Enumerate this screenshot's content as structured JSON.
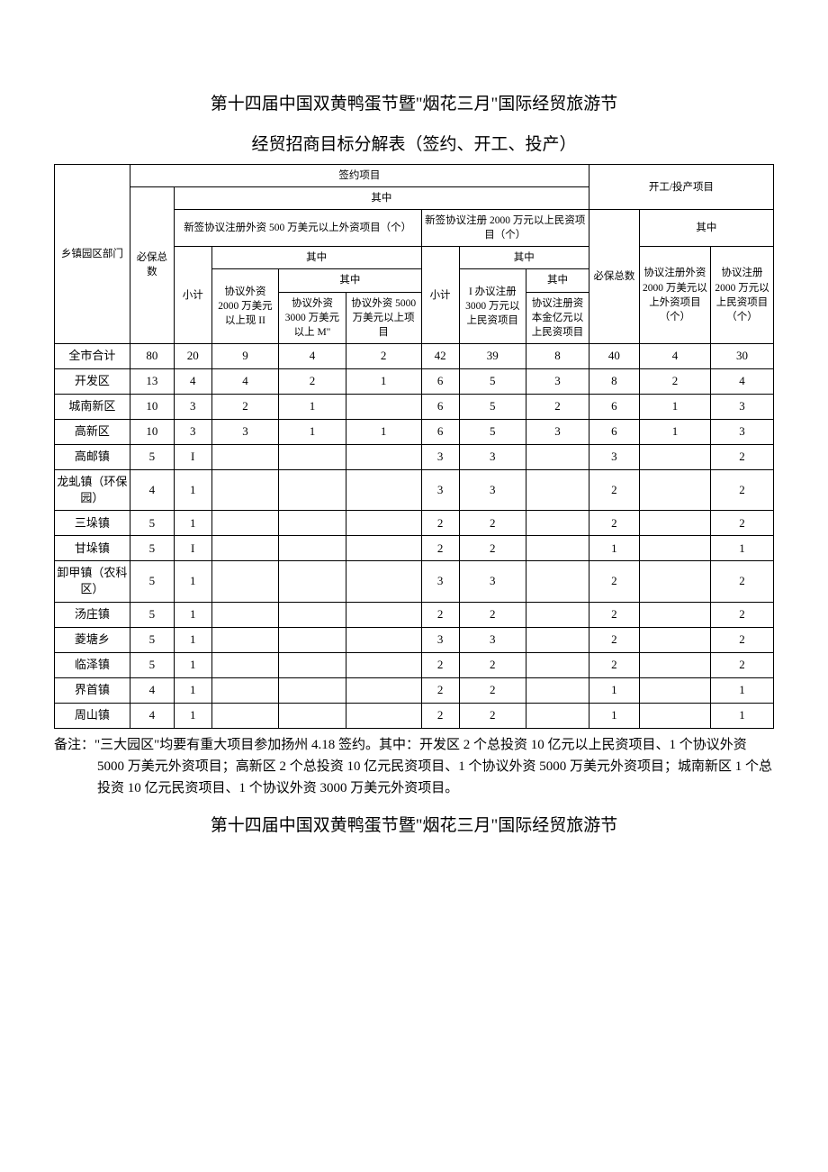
{
  "titles": {
    "main": "第十四届中国双黄鸭蛋节暨\"烟花三月\"国际经贸旅游节",
    "sub": "经贸招商目标分解表（签约、开工、投产）",
    "footer": "第十四届中国双黄鸭蛋节暨\"烟花三月\"国际经贸旅游节"
  },
  "headers": {
    "col_region": "乡镇园区部门",
    "signed_projects": "签约项目",
    "start_prod_projects": "开工/投产项目",
    "must_total": "必保总数",
    "of_which": "其中",
    "new_foreign_header": "新签协议注册外资 500 万美元以上外资项目（个）",
    "new_domestic_header": "新签协议注册 2000 万元以上民资项目（个）",
    "subtotal": "小计",
    "foreign_2000": "协议外资 2000 万美元以上现 II",
    "foreign_3000": "协议外资 3000 万美元以上 M\"",
    "foreign_5000": "协议外资 5000 万美元以上项目",
    "domestic_3000": "I 办议注册 3000 万元以上民资项目",
    "domestic_yi": "协议注册资本金亿元以上民资项目",
    "must_total2": "必保总数",
    "start_foreign_2000": "协议注册外资 2000 万美元以上外资项目（个）",
    "start_domestic_2000": "协议注册 2000 万元以上民资项目（个）"
  },
  "rows": [
    {
      "name": "全市合计",
      "d": [
        "80",
        "20",
        "9",
        "4",
        "2",
        "42",
        "39",
        "8",
        "40",
        "4",
        "30"
      ],
      "tall": false
    },
    {
      "name": "开发区",
      "d": [
        "13",
        "4",
        "4",
        "2",
        "1",
        "6",
        "5",
        "3",
        "8",
        "2",
        "4"
      ],
      "tall": false
    },
    {
      "name": "城南新区",
      "d": [
        "10",
        "3",
        "2",
        "1",
        "",
        "6",
        "5",
        "2",
        "6",
        "1",
        "3"
      ],
      "tall": false
    },
    {
      "name": "高新区",
      "d": [
        "10",
        "3",
        "3",
        "1",
        "1",
        "6",
        "5",
        "3",
        "6",
        "1",
        "3"
      ],
      "tall": false
    },
    {
      "name": "高邮镇",
      "d": [
        "5",
        "I",
        "",
        "",
        "",
        "3",
        "3",
        "",
        "3",
        "",
        "2"
      ],
      "tall": false
    },
    {
      "name": "龙虬镇（环保园）",
      "d": [
        "4",
        "1",
        "",
        "",
        "",
        "3",
        "3",
        "",
        "2",
        "",
        "2"
      ],
      "tall": true
    },
    {
      "name": "三垛镇",
      "d": [
        "5",
        "1",
        "",
        "",
        "",
        "2",
        "2",
        "",
        "2",
        "",
        "2"
      ],
      "tall": false
    },
    {
      "name": "甘垛镇",
      "d": [
        "5",
        "I",
        "",
        "",
        "",
        "2",
        "2",
        "",
        "1",
        "",
        "1"
      ],
      "tall": false
    },
    {
      "name": "卸甲镇（农科区）",
      "d": [
        "5",
        "1",
        "",
        "",
        "",
        "3",
        "3",
        "",
        "2",
        "",
        "2"
      ],
      "tall": true
    },
    {
      "name": "汤庄镇",
      "d": [
        "5",
        "1",
        "",
        "",
        "",
        "2",
        "2",
        "",
        "2",
        "",
        "2"
      ],
      "tall": false
    },
    {
      "name": "菱塘乡",
      "d": [
        "5",
        "1",
        "",
        "",
        "",
        "3",
        "3",
        "",
        "2",
        "",
        "2"
      ],
      "tall": false
    },
    {
      "name": "临泽镇",
      "d": [
        "5",
        "1",
        "",
        "",
        "",
        "2",
        "2",
        "",
        "2",
        "",
        "2"
      ],
      "tall": false
    },
    {
      "name": "界首镇",
      "d": [
        "4",
        "1",
        "",
        "",
        "",
        "2",
        "2",
        "",
        "1",
        "",
        "1"
      ],
      "tall": false
    },
    {
      "name": "周山镇",
      "d": [
        "4",
        "1",
        "",
        "",
        "",
        "2",
        "2",
        "",
        "1",
        "",
        "1"
      ],
      "tall": false
    }
  ],
  "note": "备注：\"三大园区\"均要有重大项目参加扬州 4.18 签约。其中：开发区 2 个总投资 10 亿元以上民资项目、1 个协议外资 5000 万美元外资项目；高新区 2 个总投资 10 亿元民资项目、1 个协议外资 5000 万美元外资项目；城南新区 1 个总投资 10 亿元民资项目、1 个协议外资 3000 万美元外资项目。"
}
